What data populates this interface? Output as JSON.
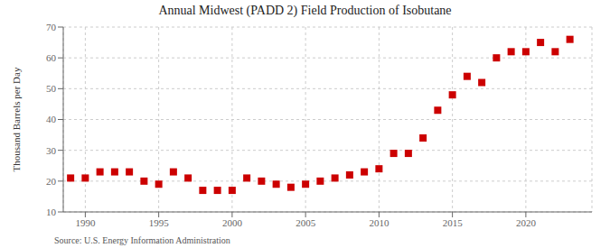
{
  "chart_data": {
    "type": "scatter",
    "title": "Annual Midwest (PADD 2) Field Production of Isobutane",
    "ylabel": "Thousand Barrels per Day",
    "annotations": [
      "Source: U.S. Energy Information Administration"
    ],
    "x": [
      1989,
      1990,
      1991,
      1992,
      1993,
      1994,
      1995,
      1996,
      1997,
      1998,
      1999,
      2000,
      2001,
      2002,
      2003,
      2004,
      2005,
      2006,
      2007,
      2008,
      2009,
      2010,
      2011,
      2012,
      2013,
      2014,
      2015,
      2016,
      2017,
      2018,
      2019,
      2020,
      2021,
      2022,
      2023
    ],
    "values": [
      21,
      21,
      23,
      23,
      23,
      20,
      19,
      23,
      21,
      17,
      17,
      17,
      21,
      20,
      19,
      18,
      19,
      20,
      21,
      22,
      23,
      24,
      29,
      29,
      34,
      43,
      48,
      54,
      52,
      60,
      62,
      62,
      65,
      62,
      66
    ],
    "xlim": [
      1988.5,
      2024.5
    ],
    "ylim": [
      10,
      70
    ],
    "xticks": [
      1990,
      1995,
      2000,
      2005,
      2010,
      2015,
      2020
    ],
    "yticks": [
      10,
      20,
      30,
      40,
      50,
      60,
      70
    ],
    "grid": true,
    "color": "#cc0000",
    "marker": "square"
  }
}
